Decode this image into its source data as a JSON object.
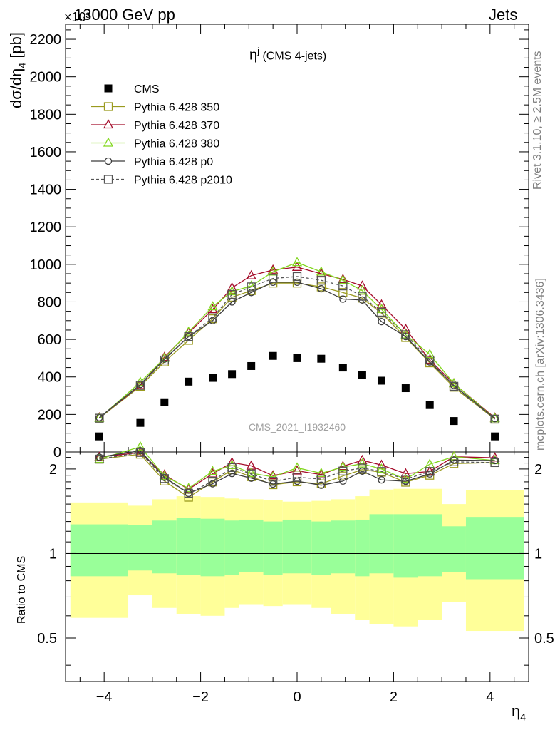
{
  "header": {
    "process": "13000 GeV pp",
    "tag": "Jets",
    "exponent": "×10³"
  },
  "side_labels": {
    "rivet": "Rivet 3.1.10, ≥ 2.5M events",
    "mcplots": "mcplots.cern.ch [arXiv:1306.3436]"
  },
  "chart_data": {
    "type": "scatter",
    "title_main": "η",
    "title_sup": "j",
    "title_rest": " (CMS 4-jets)",
    "watermark": "CMS_2021_I1932460",
    "ylabel": "dσ/dη",
    "ylabel_sub": "4",
    "ylabel_unit": " [pb]",
    "xlabel": "η",
    "xlabel_sub": "4",
    "ratio_ylabel": "Ratio to CMS",
    "xlim": [
      -4.8,
      4.8
    ],
    "ylim": [
      0,
      2280
    ],
    "ratio_ylim": [
      0.35,
      2.3
    ],
    "ratio_log": true,
    "x": [
      -4.1,
      -3.25,
      -2.75,
      -2.25,
      -1.75,
      -1.35,
      -0.95,
      -0.5,
      0.0,
      0.5,
      0.95,
      1.35,
      1.75,
      2.25,
      2.75,
      3.25,
      4.1
    ],
    "bins": [
      [
        -4.7,
        -3.5
      ],
      [
        -3.5,
        -3.0
      ],
      [
        -3.0,
        -2.5
      ],
      [
        -2.5,
        -2.0
      ],
      [
        -2.0,
        -1.5
      ],
      [
        -1.5,
        -1.2
      ],
      [
        -1.2,
        -0.7
      ],
      [
        -0.7,
        -0.3
      ],
      [
        -0.3,
        0.3
      ],
      [
        0.3,
        0.7
      ],
      [
        0.7,
        1.2
      ],
      [
        1.2,
        1.5
      ],
      [
        1.5,
        2.0
      ],
      [
        2.0,
        2.5
      ],
      [
        2.5,
        3.0
      ],
      [
        3.0,
        3.5
      ],
      [
        3.5,
        4.7
      ]
    ],
    "x_ticks": [
      -4,
      -2,
      0,
      2,
      4
    ],
    "y_ticks": [
      0,
      200,
      400,
      600,
      800,
      1000,
      1200,
      1400,
      1600,
      1800,
      2000,
      2200
    ],
    "ratio_ticks": [
      0.5,
      1,
      2
    ],
    "band_green": [
      [
        0.83,
        1.27
      ],
      [
        0.87,
        1.26
      ],
      [
        0.85,
        1.31
      ],
      [
        0.84,
        1.34
      ],
      [
        0.83,
        1.33
      ],
      [
        0.84,
        1.31
      ],
      [
        0.86,
        1.32
      ],
      [
        0.84,
        1.3
      ],
      [
        0.85,
        1.32
      ],
      [
        0.84,
        1.3
      ],
      [
        0.85,
        1.31
      ],
      [
        0.83,
        1.32
      ],
      [
        0.85,
        1.38
      ],
      [
        0.82,
        1.38
      ],
      [
        0.83,
        1.38
      ],
      [
        0.86,
        1.25
      ],
      [
        0.81,
        1.35
      ]
    ],
    "band_yellow": [
      [
        0.59,
        1.52
      ],
      [
        0.71,
        1.48
      ],
      [
        0.64,
        1.56
      ],
      [
        0.61,
        1.6
      ],
      [
        0.6,
        1.59
      ],
      [
        0.64,
        1.57
      ],
      [
        0.66,
        1.56
      ],
      [
        0.65,
        1.55
      ],
      [
        0.66,
        1.53
      ],
      [
        0.64,
        1.54
      ],
      [
        0.61,
        1.56
      ],
      [
        0.58,
        1.6
      ],
      [
        0.56,
        1.69
      ],
      [
        0.55,
        1.7
      ],
      [
        0.58,
        1.7
      ],
      [
        0.67,
        1.5
      ],
      [
        0.53,
        1.68
      ]
    ],
    "data": {
      "name": "CMS",
      "values": [
        83,
        155,
        265,
        375,
        395,
        415,
        458,
        512,
        500,
        497,
        450,
        412,
        380,
        340,
        250,
        165,
        83
      ]
    },
    "series": [
      {
        "name": "Pythia 6.428 350",
        "color": "#9a9a1e",
        "marker": "square-open",
        "dash": "",
        "values": [
          180,
          350,
          480,
          595,
          710,
          825,
          860,
          900,
          900,
          880,
          850,
          820,
          740,
          610,
          475,
          345,
          175
        ]
      },
      {
        "name": "Pythia 6.428 370",
        "color": "#a50d2b",
        "marker": "triangle-open",
        "dash": "",
        "values": [
          183,
          355,
          505,
          635,
          760,
          875,
          940,
          970,
          985,
          950,
          920,
          885,
          785,
          655,
          490,
          365,
          182
        ]
      },
      {
        "name": "Pythia 6.428 380",
        "color": "#82d71e",
        "marker": "triangle-open",
        "dash": "",
        "values": [
          180,
          372,
          500,
          640,
          775,
          855,
          885,
          960,
          1010,
          960,
          915,
          860,
          760,
          625,
          520,
          365,
          178
        ]
      },
      {
        "name": "Pythia 6.428 p0",
        "color": "#3c3c3c",
        "marker": "circle-open",
        "dash": "",
        "values": [
          183,
          360,
          495,
          615,
          700,
          800,
          850,
          905,
          905,
          870,
          815,
          810,
          695,
          615,
          480,
          355,
          178
        ]
      },
      {
        "name": "Pythia 6.428 p2010",
        "color": "#555555",
        "marker": "square-open",
        "dash": "4,3",
        "values": [
          180,
          355,
          490,
          615,
          715,
          840,
          880,
          925,
          935,
          915,
          885,
          830,
          745,
          625,
          490,
          350,
          175
        ]
      }
    ]
  }
}
